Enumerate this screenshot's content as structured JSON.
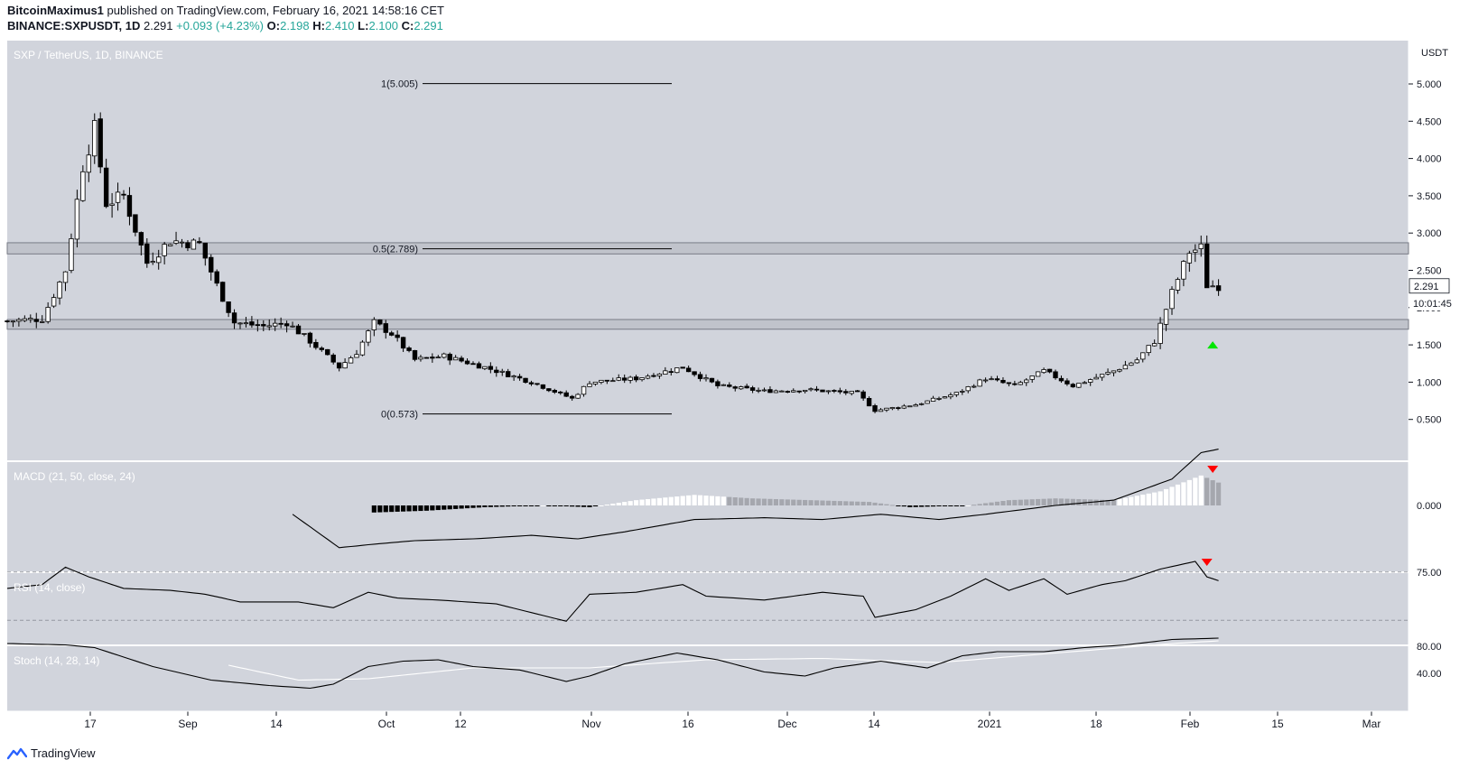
{
  "header": {
    "author": "BitcoinMaximus1",
    "published_text": "published on TradingView.com, February 16, 2021 14:58:16 CET",
    "symbol": "BINANCE:SXPUSDT, 1D",
    "last": "2.291",
    "change": "+0.093 (+4.23%)",
    "o_label": "O:",
    "o": "2.198",
    "h_label": "H:",
    "h": "2.410",
    "l_label": "L:",
    "l": "2.100",
    "c_label": "C:",
    "c": "2.291"
  },
  "brand": {
    "name": "TradingView"
  },
  "colors": {
    "panel_bg": "#d1d4dc",
    "candle_up": "#ffffff",
    "candle_down": "#000000",
    "zone": "#b2b5be",
    "arrow_up": "#00e600",
    "arrow_down": "#ff0000"
  },
  "chart_data": {
    "type": "candlestick",
    "title": "SXP / TetherUS, 1D, BINANCE",
    "y_unit": "USDT",
    "price_ticks": [
      "5.000",
      "4.500",
      "4.000",
      "3.500",
      "3.000",
      "2.500",
      "2.000",
      "1.500",
      "1.000",
      "0.500"
    ],
    "x_ticks": [
      "17",
      "Sep",
      "14",
      "Oct",
      "12",
      "Nov",
      "16",
      "Dec",
      "14",
      "2021",
      "18",
      "Feb",
      "15",
      "Mar"
    ],
    "last_price": "2.291",
    "countdown": "10:01:45",
    "fib_levels": [
      {
        "label": "1(5.005)",
        "value": 5.005
      },
      {
        "label": "0.5(2.789)",
        "value": 2.789
      },
      {
        "label": "0(0.573)",
        "value": 0.573
      }
    ],
    "zones": [
      {
        "low": 2.72,
        "high": 2.87
      },
      {
        "low": 1.71,
        "high": 1.84
      }
    ],
    "close_path": [
      {
        "day": 0,
        "close": 1.82
      },
      {
        "day": 6,
        "close": 1.85
      },
      {
        "day": 10,
        "close": 2.5
      },
      {
        "day": 13,
        "close": 3.9
      },
      {
        "day": 15,
        "close": 4.4
      },
      {
        "day": 17,
        "close": 3.4
      },
      {
        "day": 20,
        "close": 3.5
      },
      {
        "day": 24,
        "close": 2.6
      },
      {
        "day": 28,
        "close": 2.9
      },
      {
        "day": 33,
        "close": 2.85
      },
      {
        "day": 36,
        "close": 2.3
      },
      {
        "day": 39,
        "close": 1.8
      },
      {
        "day": 44,
        "close": 1.75
      },
      {
        "day": 48,
        "close": 1.8
      },
      {
        "day": 52,
        "close": 1.55
      },
      {
        "day": 57,
        "close": 1.2
      },
      {
        "day": 60,
        "close": 1.4
      },
      {
        "day": 63,
        "close": 1.8
      },
      {
        "day": 66,
        "close": 1.65
      },
      {
        "day": 70,
        "close": 1.3
      },
      {
        "day": 75,
        "close": 1.35
      },
      {
        "day": 82,
        "close": 1.2
      },
      {
        "day": 90,
        "close": 1.0
      },
      {
        "day": 97,
        "close": 0.78
      },
      {
        "day": 100,
        "close": 1.0
      },
      {
        "day": 108,
        "close": 1.05
      },
      {
        "day": 116,
        "close": 1.2
      },
      {
        "day": 122,
        "close": 0.95
      },
      {
        "day": 130,
        "close": 0.88
      },
      {
        "day": 137,
        "close": 0.9
      },
      {
        "day": 146,
        "close": 0.85
      },
      {
        "day": 149,
        "close": 0.62
      },
      {
        "day": 156,
        "close": 0.7
      },
      {
        "day": 163,
        "close": 0.85
      },
      {
        "day": 168,
        "close": 1.05
      },
      {
        "day": 173,
        "close": 0.95
      },
      {
        "day": 178,
        "close": 1.15
      },
      {
        "day": 183,
        "close": 0.95
      },
      {
        "day": 190,
        "close": 1.15
      },
      {
        "day": 194,
        "close": 1.3
      },
      {
        "day": 197,
        "close": 1.55
      },
      {
        "day": 200,
        "close": 2.2
      },
      {
        "day": 203,
        "close": 2.75
      },
      {
        "day": 205,
        "close": 2.8
      },
      {
        "day": 206,
        "close": 2.3
      },
      {
        "day": 208,
        "close": 2.291
      }
    ],
    "indicators": {
      "macd": {
        "label": "MACD (21, 50, close, 24)",
        "tick": "0.000",
        "line": [
          {
            "day": 49,
            "value": -0.05
          },
          {
            "day": 57,
            "value": -0.24
          },
          {
            "day": 63,
            "value": -0.22
          },
          {
            "day": 70,
            "value": -0.2
          },
          {
            "day": 80,
            "value": -0.19
          },
          {
            "day": 90,
            "value": -0.17
          },
          {
            "day": 98,
            "value": -0.19
          },
          {
            "day": 106,
            "value": -0.15
          },
          {
            "day": 118,
            "value": -0.08
          },
          {
            "day": 130,
            "value": -0.07
          },
          {
            "day": 140,
            "value": -0.08
          },
          {
            "day": 150,
            "value": -0.05
          },
          {
            "day": 160,
            "value": -0.08
          },
          {
            "day": 168,
            "value": -0.05
          },
          {
            "day": 180,
            "value": 0.0
          },
          {
            "day": 190,
            "value": 0.03
          },
          {
            "day": 200,
            "value": 0.15
          },
          {
            "day": 205,
            "value": 0.3
          },
          {
            "day": 208,
            "value": 0.32
          }
        ],
        "histogram": [
          {
            "day": 63,
            "value": -0.04
          },
          {
            "day": 72,
            "value": -0.03
          },
          {
            "day": 82,
            "value": -0.01
          },
          {
            "day": 92,
            "value": 0.0
          },
          {
            "day": 100,
            "value": -0.01
          },
          {
            "day": 108,
            "value": 0.03
          },
          {
            "day": 118,
            "value": 0.06
          },
          {
            "day": 128,
            "value": 0.04
          },
          {
            "day": 138,
            "value": 0.03
          },
          {
            "day": 148,
            "value": 0.02
          },
          {
            "day": 155,
            "value": -0.01
          },
          {
            "day": 165,
            "value": 0.0
          },
          {
            "day": 172,
            "value": 0.03
          },
          {
            "day": 180,
            "value": 0.04
          },
          {
            "day": 190,
            "value": 0.03
          },
          {
            "day": 198,
            "value": 0.08
          },
          {
            "day": 205,
            "value": 0.17
          },
          {
            "day": 208,
            "value": 0.13
          }
        ]
      },
      "rsi": {
        "label": "RSI (14, close)",
        "tick": "75.00",
        "bands": [
          75,
          25
        ],
        "line": [
          {
            "day": 0,
            "value": 58
          },
          {
            "day": 6,
            "value": 62
          },
          {
            "day": 10,
            "value": 80
          },
          {
            "day": 14,
            "value": 70
          },
          {
            "day": 20,
            "value": 58
          },
          {
            "day": 28,
            "value": 56
          },
          {
            "day": 34,
            "value": 52
          },
          {
            "day": 40,
            "value": 44
          },
          {
            "day": 50,
            "value": 44
          },
          {
            "day": 56,
            "value": 38
          },
          {
            "day": 62,
            "value": 54
          },
          {
            "day": 67,
            "value": 48
          },
          {
            "day": 74,
            "value": 46
          },
          {
            "day": 84,
            "value": 42
          },
          {
            "day": 92,
            "value": 30
          },
          {
            "day": 96,
            "value": 24
          },
          {
            "day": 100,
            "value": 52
          },
          {
            "day": 108,
            "value": 54
          },
          {
            "day": 116,
            "value": 62
          },
          {
            "day": 120,
            "value": 50
          },
          {
            "day": 130,
            "value": 46
          },
          {
            "day": 140,
            "value": 54
          },
          {
            "day": 147,
            "value": 50
          },
          {
            "day": 149,
            "value": 28
          },
          {
            "day": 156,
            "value": 36
          },
          {
            "day": 162,
            "value": 50
          },
          {
            "day": 168,
            "value": 68
          },
          {
            "day": 172,
            "value": 56
          },
          {
            "day": 178,
            "value": 68
          },
          {
            "day": 182,
            "value": 52
          },
          {
            "day": 188,
            "value": 62
          },
          {
            "day": 192,
            "value": 66
          },
          {
            "day": 198,
            "value": 78
          },
          {
            "day": 204,
            "value": 86
          },
          {
            "day": 206,
            "value": 70
          },
          {
            "day": 208,
            "value": 66
          }
        ]
      },
      "stoch": {
        "label": "Stoch (14, 28, 14)",
        "ticks": [
          "80.00",
          "40.00"
        ],
        "k": [
          {
            "day": 0,
            "value": 84
          },
          {
            "day": 10,
            "value": 82
          },
          {
            "day": 15,
            "value": 78
          },
          {
            "day": 25,
            "value": 50
          },
          {
            "day": 35,
            "value": 30
          },
          {
            "day": 45,
            "value": 22
          },
          {
            "day": 52,
            "value": 18
          },
          {
            "day": 56,
            "value": 24
          },
          {
            "day": 62,
            "value": 50
          },
          {
            "day": 68,
            "value": 58
          },
          {
            "day": 74,
            "value": 60
          },
          {
            "day": 80,
            "value": 50
          },
          {
            "day": 88,
            "value": 45
          },
          {
            "day": 96,
            "value": 28
          },
          {
            "day": 100,
            "value": 36
          },
          {
            "day": 106,
            "value": 54
          },
          {
            "day": 115,
            "value": 70
          },
          {
            "day": 122,
            "value": 60
          },
          {
            "day": 130,
            "value": 42
          },
          {
            "day": 137,
            "value": 36
          },
          {
            "day": 142,
            "value": 48
          },
          {
            "day": 150,
            "value": 58
          },
          {
            "day": 158,
            "value": 48
          },
          {
            "day": 164,
            "value": 66
          },
          {
            "day": 170,
            "value": 72
          },
          {
            "day": 178,
            "value": 72
          },
          {
            "day": 185,
            "value": 78
          },
          {
            "day": 192,
            "value": 82
          },
          {
            "day": 200,
            "value": 90
          },
          {
            "day": 208,
            "value": 92
          }
        ],
        "d": [
          {
            "day": 38,
            "value": 52
          },
          {
            "day": 50,
            "value": 30
          },
          {
            "day": 62,
            "value": 32
          },
          {
            "day": 80,
            "value": 48
          },
          {
            "day": 100,
            "value": 48
          },
          {
            "day": 120,
            "value": 60
          },
          {
            "day": 140,
            "value": 62
          },
          {
            "day": 160,
            "value": 56
          },
          {
            "day": 180,
            "value": 70
          },
          {
            "day": 200,
            "value": 84
          },
          {
            "day": 208,
            "value": 88
          }
        ]
      }
    },
    "signals": [
      {
        "panel": "price",
        "type": "up-arrow",
        "day": 207,
        "value": 1.5
      },
      {
        "panel": "macd",
        "type": "down-arrow",
        "day": 207
      },
      {
        "panel": "rsi",
        "type": "down-arrow",
        "day": 206
      }
    ]
  }
}
